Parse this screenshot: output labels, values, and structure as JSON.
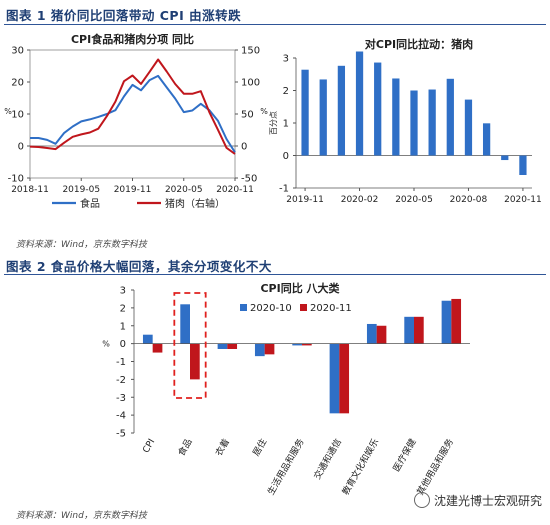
{
  "figure1": {
    "title": "图表 1 猪价同比回落带动 CPI 由涨转跌"
  },
  "figure2": {
    "title": "图表 2 食品价格大幅回落，其余分项变化不大"
  },
  "sources": {
    "s1": "资料来源：Wind，京东数字科技",
    "s2": "资料来源：Wind，京东数字科技"
  },
  "watermark": {
    "text": "沈建光博士宏观研究",
    "icon": "wechat-icon"
  },
  "colors": {
    "blue": "#2f6fc6",
    "red": "#c0161c",
    "dashed": "#e0201e"
  },
  "chart_data": [
    {
      "type": "line",
      "title": "CPI食品和猪肉分项 同比",
      "xlabel": "",
      "ylabel_left": "%",
      "ylabel_right": "%",
      "ylim_left": [
        -10,
        30
      ],
      "ylim_right": [
        -50,
        150
      ],
      "yticks_left": [
        -10,
        0,
        10,
        20,
        30
      ],
      "yticks_right": [
        -50,
        0,
        50,
        100,
        150
      ],
      "x_tick_labels": [
        "2018-11",
        "2019-05",
        "2019-11",
        "2020-05",
        "2020-11"
      ],
      "x": [
        "2018-11",
        "2018-12",
        "2019-01",
        "2019-02",
        "2019-03",
        "2019-04",
        "2019-05",
        "2019-06",
        "2019-07",
        "2019-08",
        "2019-09",
        "2019-10",
        "2019-11",
        "2019-12",
        "2020-01",
        "2020-02",
        "2020-03",
        "2020-04",
        "2020-05",
        "2020-06",
        "2020-07",
        "2020-08",
        "2020-09",
        "2020-10",
        "2020-11"
      ],
      "series": [
        {
          "name": "食品",
          "axis": "left",
          "color": "#2f6fc6",
          "values": [
            2.5,
            2.5,
            1.9,
            0.7,
            4.1,
            6.1,
            7.7,
            8.3,
            9.1,
            10.0,
            11.2,
            15.5,
            19.1,
            17.4,
            20.6,
            21.9,
            18.3,
            14.8,
            10.6,
            11.1,
            13.2,
            11.2,
            7.9,
            2.2,
            -2.0
          ]
        },
        {
          "name": "猪肉（右轴）",
          "axis": "right",
          "color": "#c0161c",
          "values": [
            -1.0,
            -1.5,
            -3.2,
            -4.8,
            5.1,
            14.4,
            18.2,
            21.1,
            27.0,
            46.7,
            69.3,
            101.3,
            110.2,
            97.0,
            116.0,
            135.2,
            116.4,
            96.9,
            81.7,
            81.6,
            85.7,
            52.6,
            25.5,
            -2.8,
            -12.5
          ]
        }
      ],
      "legend": "bottom"
    },
    {
      "type": "bar",
      "title": "对CPI同比拉动：猪肉",
      "ylabel": "百分点",
      "ylim": [
        -1,
        3
      ],
      "yticks": [
        -1,
        0,
        1,
        2,
        3
      ],
      "x_tick_labels": [
        "2019-11",
        "2020-02",
        "2020-05",
        "2020-08",
        "2020-11"
      ],
      "categories": [
        "2019-11",
        "2019-12",
        "2020-01",
        "2020-02",
        "2020-03",
        "2020-04",
        "2020-05",
        "2020-06",
        "2020-07",
        "2020-08",
        "2020-09",
        "2020-10",
        "2020-11"
      ],
      "values": [
        2.64,
        2.34,
        2.76,
        3.2,
        2.86,
        2.37,
        2.0,
        2.03,
        2.36,
        1.72,
        0.99,
        -0.14,
        -0.6
      ],
      "color": "#2f6fc6"
    },
    {
      "type": "bar",
      "title": "CPI同比 八大类",
      "ylabel": "%",
      "ylim": [
        -5,
        3
      ],
      "yticks": [
        -5,
        -4,
        -3,
        -2,
        -1,
        0,
        1,
        2,
        3
      ],
      "categories": [
        "CPI",
        "食品",
        "衣着",
        "居住",
        "生活用品和服务",
        "交通和通信",
        "教育文化和娱乐",
        "医疗保健",
        "其他用品和服务"
      ],
      "series": [
        {
          "name": "2020-10",
          "color": "#2f6fc6",
          "values": [
            0.5,
            2.2,
            -0.3,
            -0.7,
            -0.1,
            -3.9,
            1.1,
            1.5,
            2.4
          ]
        },
        {
          "name": "2020-11",
          "color": "#c0161c",
          "values": [
            -0.5,
            -2.0,
            -0.3,
            -0.6,
            -0.1,
            -3.9,
            1.0,
            1.5,
            2.5
          ]
        }
      ],
      "legend": "top",
      "highlight_category": "食品"
    }
  ]
}
